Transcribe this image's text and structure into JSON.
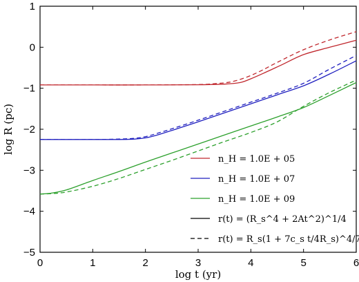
{
  "chart_data": {
    "type": "line",
    "xlabel": "log t (yr)",
    "ylabel": "log R (pc)",
    "xlim": [
      0,
      6
    ],
    "ylim": [
      -5,
      1
    ],
    "xticks": [
      0,
      1,
      2,
      3,
      4,
      5,
      6
    ],
    "yticks": [
      -5,
      -4,
      -3,
      -2,
      -1,
      0,
      1
    ],
    "xtick_labels": [
      "0",
      "1",
      "2",
      "3",
      "4",
      "5",
      "6"
    ],
    "ytick_labels": [
      "−5",
      "−4",
      "−3",
      "−2",
      "−1",
      "0",
      "1"
    ],
    "grid": false,
    "legend_position": "lower-right",
    "legend": [
      {
        "label": "n_H = 1.0E + 05",
        "color": "#c0272d",
        "style": "solid"
      },
      {
        "label": "n_H = 1.0E + 07",
        "color": "#1f1fbf",
        "style": "solid"
      },
      {
        "label": "n_H = 1.0E + 09",
        "color": "#2ca02c",
        "style": "solid"
      },
      {
        "label": "r(t) = (R_s^4 + 2At^2)^1/4",
        "color": "#000000",
        "style": "solid"
      },
      {
        "label": "r(t) = R_s(1 + 7c_s t/4R_s)^4/7",
        "color": "#000000",
        "style": "dashed"
      }
    ],
    "series": [
      {
        "name": "n_H = 1.0E + 05",
        "color": "#c0272d",
        "style": "solid",
        "x": [
          0,
          1,
          2,
          3,
          3.5,
          3.8,
          4,
          4.3,
          4.6,
          5,
          5.5,
          6
        ],
        "y": [
          -0.92,
          -0.92,
          -0.92,
          -0.915,
          -0.9,
          -0.86,
          -0.77,
          -0.6,
          -0.42,
          -0.18,
          0.0,
          0.17
        ]
      },
      {
        "name": "",
        "color": "#c0272d",
        "style": "dashed",
        "x": [
          0,
          1,
          2,
          3,
          3.3,
          3.6,
          3.9,
          4.2,
          4.5,
          5,
          5.5,
          6
        ],
        "y": [
          -0.92,
          -0.92,
          -0.92,
          -0.91,
          -0.89,
          -0.85,
          -0.74,
          -0.57,
          -0.37,
          -0.06,
          0.18,
          0.38
        ]
      },
      {
        "name": "n_H = 1.0E + 07",
        "color": "#1f1fbf",
        "style": "solid",
        "x": [
          0,
          1,
          1.5,
          1.8,
          2,
          2.2,
          2.5,
          3,
          3.5,
          4,
          4.5,
          5,
          5.5,
          6
        ],
        "y": [
          -2.25,
          -2.25,
          -2.25,
          -2.24,
          -2.21,
          -2.15,
          -2.03,
          -1.82,
          -1.6,
          -1.38,
          -1.16,
          -0.94,
          -0.65,
          -0.33
        ]
      },
      {
        "name": "",
        "color": "#1f1fbf",
        "style": "dashed",
        "x": [
          0,
          1,
          1.5,
          1.8,
          2,
          2.2,
          2.5,
          3,
          3.5,
          4,
          4.5,
          5,
          5.5,
          6
        ],
        "y": [
          -2.25,
          -2.25,
          -2.24,
          -2.22,
          -2.18,
          -2.11,
          -1.99,
          -1.78,
          -1.56,
          -1.34,
          -1.12,
          -0.88,
          -0.53,
          -0.2
        ]
      },
      {
        "name": "n_H = 1.0E + 09",
        "color": "#2ca02c",
        "style": "solid",
        "x": [
          0,
          0.2,
          0.5,
          1,
          1.5,
          2,
          2.5,
          3,
          3.5,
          4,
          4.5,
          5,
          5.5,
          6
        ],
        "y": [
          -3.58,
          -3.56,
          -3.48,
          -3.25,
          -3.03,
          -2.8,
          -2.58,
          -2.36,
          -2.14,
          -1.92,
          -1.7,
          -1.47,
          -1.17,
          -0.86
        ]
      },
      {
        "name": "",
        "color": "#2ca02c",
        "style": "dashed",
        "x": [
          0,
          0.2,
          0.5,
          1,
          1.5,
          2,
          2.5,
          3,
          3.5,
          4,
          4.5,
          5,
          5.5,
          6
        ],
        "y": [
          -3.58,
          -3.57,
          -3.53,
          -3.39,
          -3.2,
          -2.98,
          -2.76,
          -2.53,
          -2.3,
          -2.08,
          -1.82,
          -1.44,
          -1.1,
          -0.8
        ]
      }
    ]
  }
}
